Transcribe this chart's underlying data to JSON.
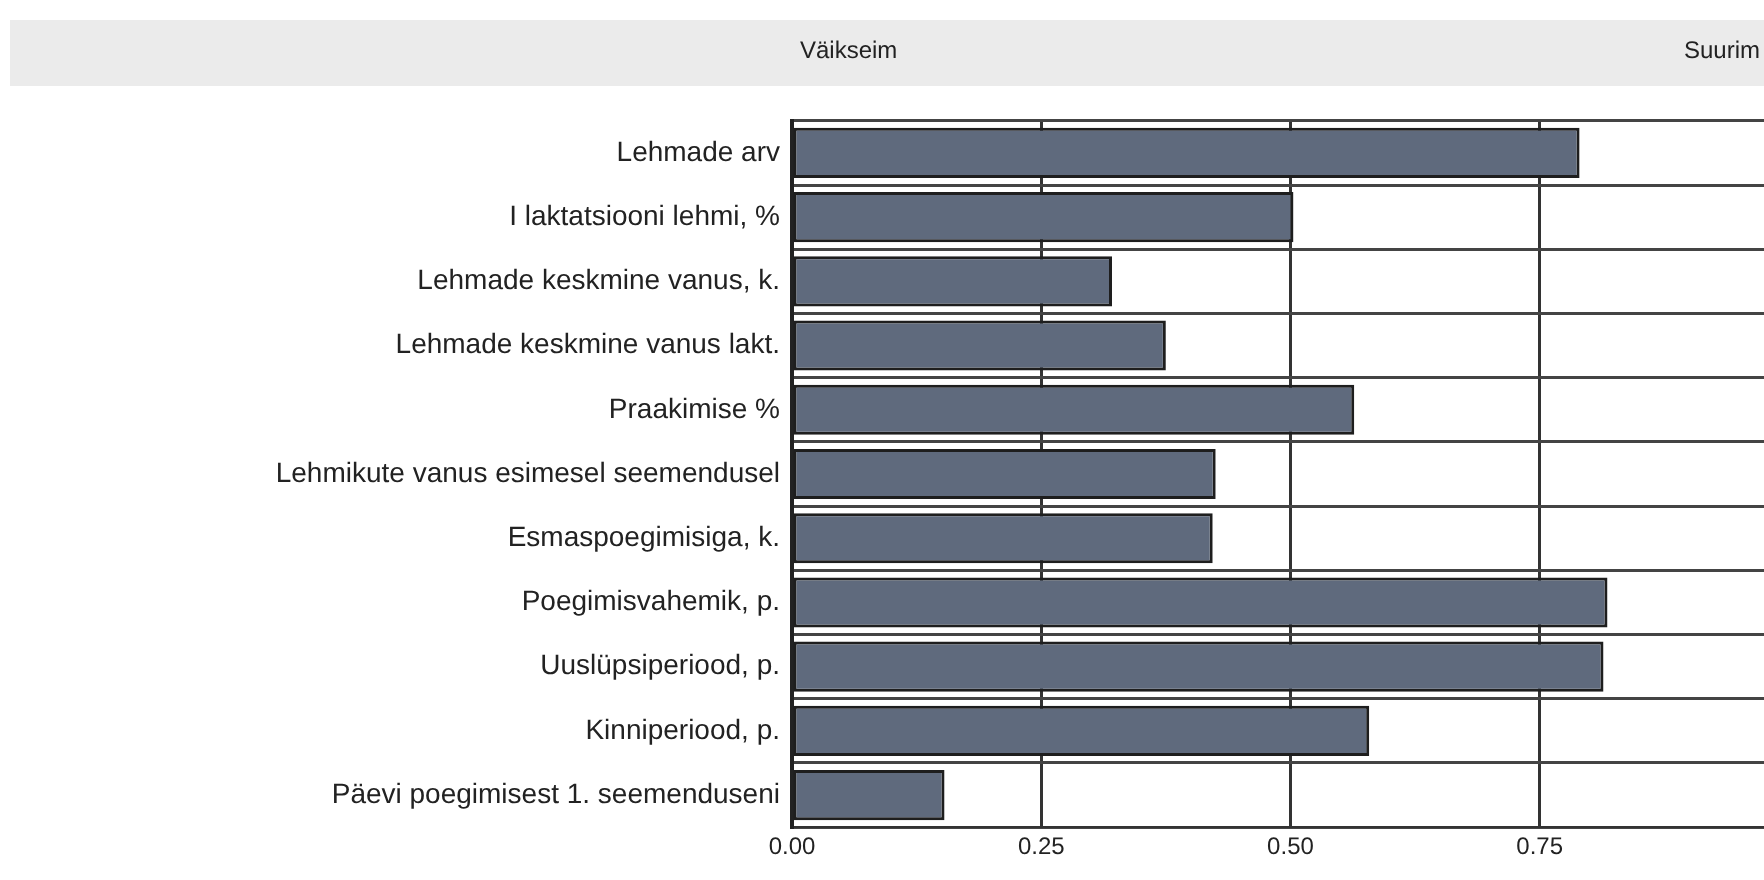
{
  "chart_data": {
    "type": "bar",
    "orientation": "horizontal",
    "annotations": [
      "Väikseim",
      "Suurim"
    ],
    "categories": [
      "Lehmade arv",
      "I laktatsiooni lehmi, %",
      "Lehmade keskmine vanus, k.",
      "Lehmade keskmine vanus lakt.",
      "Praakimise %",
      "Lehmikute vanus esimesel seemendusel",
      "Esmaspoegimisiga, k.",
      "Poegimisvahemik, p.",
      "Uuslüpsiperiood, p.",
      "Kinniperiood, p.",
      "Päevi poegimisest 1. seemenduseni"
    ],
    "values": [
      0.79,
      0.503,
      0.321,
      0.375,
      0.564,
      0.425,
      0.422,
      0.818,
      0.814,
      0.579,
      0.153
    ],
    "color": "#5f6a7d",
    "xlim": [
      0,
      0.975
    ],
    "xticks": [
      {
        "value": 0,
        "label": "0.00"
      },
      {
        "value": 0.25,
        "label": "0.25"
      },
      {
        "value": 0.5,
        "label": "0.50"
      },
      {
        "value": 0.75,
        "label": "0.75"
      }
    ],
    "grid": true,
    "legend": false
  }
}
